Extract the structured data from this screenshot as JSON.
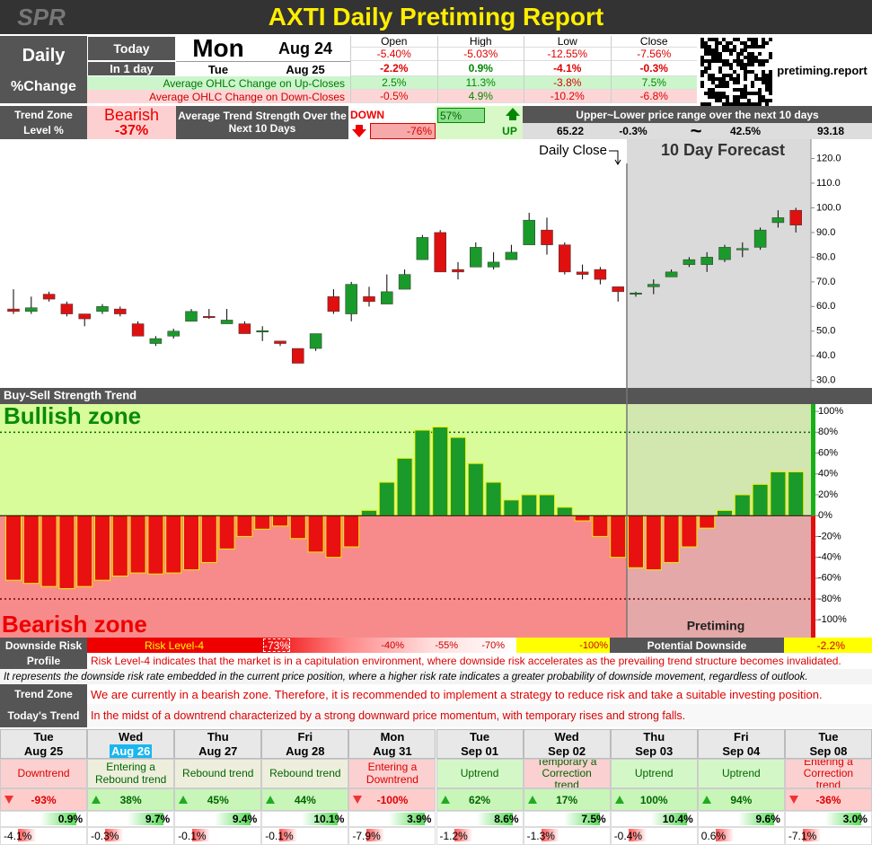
{
  "header": {
    "logo": "SPR",
    "title": "AXTI Daily Pretiming Report"
  },
  "summary": {
    "label1": "Daily",
    "label2": "%Change",
    "today_label": "Today",
    "today_day": "Mon",
    "today_date": "Aug 24",
    "next_label": "In 1 day",
    "next_day": "Tue",
    "next_date": "Aug 25",
    "columns": [
      "Open",
      "High",
      "Low",
      "Close"
    ],
    "today_change": [
      "-5.40%",
      "-5.03%",
      "-12.55%",
      "-7.56%"
    ],
    "next_change": [
      "-2.2%",
      "0.9%",
      "-4.1%",
      "-0.3%"
    ],
    "up_label": "Average OHLC Change on Up-Closes",
    "up": [
      "2.5%",
      "11.3%",
      "-3.8%",
      "7.5%"
    ],
    "down_label": "Average OHLC Change on Down-Closes",
    "down": [
      "-0.5%",
      "4.9%",
      "-10.2%",
      "-6.8%"
    ],
    "site": "pretiming.report"
  },
  "trend": {
    "label1": "Trend Zone",
    "label2": "Level %",
    "zone": "Bearish",
    "level": "-37%",
    "strength_label": "Average Trend Strength Over the Next 10 Days",
    "down_label": "DOWN",
    "down_value": "-76%",
    "up_value": "57%",
    "up_label": "UP",
    "range_label": "Upper~Lower price range over the next 10 days",
    "range": [
      "65.22",
      "-0.3%",
      "~",
      "42.5%",
      "93.18"
    ]
  },
  "chart_data": [
    {
      "type": "candlestick",
      "annotations": [
        "Daily Close",
        "10 Day Forecast"
      ],
      "up_color": "#1a9a2a",
      "down_color": "#e01010",
      "open": [
        59,
        58,
        65,
        61,
        57,
        58,
        59,
        53,
        45,
        48,
        54,
        56,
        53,
        53,
        50,
        46,
        43,
        43,
        64,
        57,
        64,
        61,
        67,
        79,
        90,
        75,
        76,
        76,
        79,
        85,
        91,
        85,
        74,
        75,
        68,
        65,
        68,
        72,
        77,
        77,
        79,
        83,
        84,
        94,
        99
      ],
      "high": [
        67,
        64,
        66,
        62,
        57,
        61,
        60,
        54,
        48,
        51,
        59,
        59,
        59,
        54,
        52,
        46,
        43,
        49,
        67,
        70,
        68,
        73,
        75,
        89,
        91,
        78,
        86,
        82,
        85,
        98,
        96,
        86,
        77,
        76,
        68,
        66,
        71,
        75,
        80,
        82,
        85,
        86,
        92,
        99,
        100
      ],
      "low": [
        57,
        57,
        62,
        56,
        52,
        57,
        56,
        48,
        44,
        47,
        54,
        55,
        53,
        49,
        46,
        44,
        37,
        42,
        57,
        54,
        60,
        61,
        67,
        79,
        74,
        71,
        76,
        75,
        79,
        85,
        81,
        73,
        71,
        69,
        62,
        64,
        65,
        72,
        76,
        74,
        78,
        80,
        83,
        92,
        90
      ],
      "close": [
        58,
        59.5,
        63,
        57,
        55,
        60,
        57,
        48,
        47,
        50,
        58,
        55.5,
        54.5,
        49,
        50.2,
        45,
        37,
        49,
        58,
        69,
        62,
        66,
        73,
        88,
        74,
        74,
        84,
        78,
        82,
        95,
        85,
        74,
        73,
        71,
        66,
        65.5,
        69,
        74,
        79,
        80,
        84,
        83.5,
        91,
        96,
        93
      ],
      "ylim": [
        27,
        126
      ],
      "yticks": [
        {
          "value": 30,
          "label": "30.0"
        },
        {
          "value": 40,
          "label": "40.0"
        },
        {
          "value": 50,
          "label": "50.0"
        },
        {
          "value": 60,
          "label": "60.0"
        },
        {
          "value": 70,
          "label": "70.0"
        },
        {
          "value": 80,
          "label": "80.0"
        },
        {
          "value": 90,
          "label": "90.0"
        },
        {
          "value": 100,
          "label": "100.0"
        },
        {
          "value": 110,
          "label": "110.0"
        },
        {
          "value": 120,
          "label": "120.0"
        }
      ]
    },
    {
      "type": "bar",
      "title": "Buy-Sell Strength Trend",
      "annotations": [
        "Bullish zone",
        "Bearish zone",
        "Pretiming"
      ],
      "up_color": "#1a9a2a",
      "down_color": "#e81010",
      "values": [
        -62,
        -65,
        -68,
        -70,
        -68,
        -62,
        -58,
        -55,
        -56,
        -55,
        -52,
        -45,
        -32,
        -20,
        -13,
        -10,
        -22,
        -35,
        -40,
        -30,
        5,
        32,
        55,
        82,
        85,
        75,
        50,
        32,
        15,
        20,
        20,
        8,
        -5,
        -20,
        -40,
        -50,
        -52,
        -45,
        -30,
        -12,
        5,
        20,
        30,
        42,
        42
      ],
      "ylim": [
        -117,
        107
      ],
      "yticks": [
        {
          "value": -100,
          "label": "-100%"
        },
        {
          "value": -80,
          "label": "-80%"
        },
        {
          "value": -60,
          "label": "-60%"
        },
        {
          "value": -40,
          "label": "-40%"
        },
        {
          "value": -20,
          "label": "-20%"
        },
        {
          "value": 0,
          "label": "0%"
        },
        {
          "value": 20,
          "label": "20%"
        },
        {
          "value": 40,
          "label": "40%"
        },
        {
          "value": 60,
          "label": "60%"
        },
        {
          "value": 80,
          "label": "80%"
        },
        {
          "value": 100,
          "label": "100%"
        }
      ]
    }
  ],
  "risk": {
    "label": "Downside Risk",
    "level": "Risk Level-4",
    "value": "-73%",
    "marks": [
      "-40%",
      "-55%",
      "-70%"
    ],
    "max": "-100%",
    "potential_label": "Potential Downside",
    "potential": "-2.2%"
  },
  "profile": {
    "label": "Profile",
    "text": "Risk Level-4 indicates that the market is in a capitulation environment, where downside risk accelerates as the prevailing trend structure becomes invalidated.",
    "note": "It represents the downside risk rate embedded in the current price position, where a higher risk rate indicates a greater probability of downside movement, regardless of outlook."
  },
  "zone": {
    "label": "Trend Zone",
    "text": "We are currently in a bearish zone. Therefore, it is recommended to implement a strategy to reduce risk and take a suitable investing position."
  },
  "today": {
    "label": "Today's Trend",
    "text": "In the midst of a downtrend characterized by a strong downward price momentum, with temporary rises and strong falls."
  },
  "days": [
    {
      "day": "Tue",
      "date": "Aug 25",
      "trend": "Downtrend",
      "strength": "-93%",
      "up": "0.9%",
      "down": "-4.1%",
      "color": "#fbd0d0"
    },
    {
      "day": "Wed",
      "date": "Aug 26",
      "trend": "Entering a Rebound trend",
      "strength": "38%",
      "up": "9.7%",
      "down": "-0.3%",
      "color": "#eeeedd"
    },
    {
      "day": "Thu",
      "date": "Aug 27",
      "trend": "Rebound trend",
      "strength": "45%",
      "up": "9.4%",
      "down": "-0.1%",
      "color": "#eeeedd"
    },
    {
      "day": "Fri",
      "date": "Aug 28",
      "trend": "Rebound trend",
      "strength": "44%",
      "up": "10.1%",
      "down": "-0.1%",
      "color": "#eeeedd"
    },
    {
      "day": "Mon",
      "date": "Aug 31",
      "trend": "Entering a Downtrend",
      "strength": "-100%",
      "up": "3.9%",
      "down": "-7.9%",
      "color": "#fbd0d0"
    },
    {
      "day": "Tue",
      "date": "Sep 01",
      "trend": "Uptrend",
      "strength": "62%",
      "up": "8.6%",
      "down": "-1.2%",
      "color": "#d4f7c8"
    },
    {
      "day": "Wed",
      "date": "Sep 02",
      "trend": "Temporary a Correction trend",
      "strength": "17%",
      "up": "7.5%",
      "down": "-1.3%",
      "color": "#fbd0d0"
    },
    {
      "day": "Thu",
      "date": "Sep 03",
      "trend": "Uptrend",
      "strength": "100%",
      "up": "10.4%",
      "down": "-0.4%",
      "color": "#d4f7c8"
    },
    {
      "day": "Fri",
      "date": "Sep 04",
      "trend": "Uptrend",
      "strength": "94%",
      "up": "9.6%",
      "down": "0.6%",
      "color": "#d4f7c8"
    },
    {
      "day": "Tue",
      "date": "Sep 08",
      "trend": "Entering a Correction trend",
      "strength": "-36%",
      "up": "3.0%",
      "down": "-7.1%",
      "color": "#fbd0d0"
    }
  ]
}
